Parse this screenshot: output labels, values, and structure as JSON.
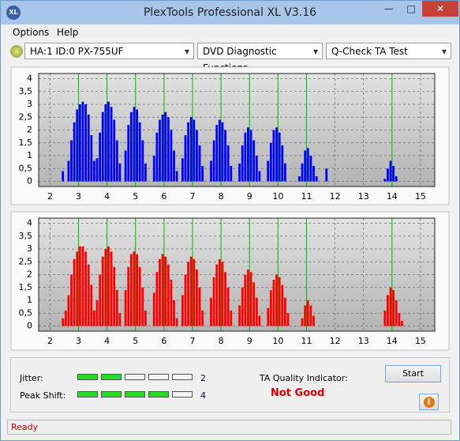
{
  "window": {
    "title": "PlexTools Professional XL V3.16"
  },
  "menu": [
    "Options",
    "Help"
  ],
  "toolbar": {
    "drive": "HA:1 ID:0  PX-755UF",
    "function": "DVD Diagnostic Functions",
    "test": "Q-Check TA Test"
  },
  "chart_data": [
    {
      "type": "bar",
      "color": "#0000ff",
      "marker_color": "#00c000",
      "grid": true,
      "xlim": [
        1.6,
        15.5
      ],
      "ylim": [
        -0.2,
        4.2
      ],
      "xticks": [
        2,
        3,
        4,
        5,
        6,
        7,
        8,
        9,
        10,
        11,
        12,
        13,
        14,
        15
      ],
      "yticks": [
        {
          "value": 0,
          "label": "0"
        },
        {
          "value": 0.5,
          "label": "0,5"
        },
        {
          "value": 1,
          "label": "1"
        },
        {
          "value": 1.5,
          "label": "1,5"
        },
        {
          "value": 2,
          "label": "2"
        },
        {
          "value": 2.5,
          "label": "2,5"
        },
        {
          "value": 3,
          "label": "3"
        },
        {
          "value": 3.5,
          "label": "3,5"
        },
        {
          "value": 4,
          "label": "4"
        }
      ],
      "markers": [
        3,
        4,
        5,
        6,
        7,
        8,
        9,
        10,
        11,
        14
      ],
      "x": [
        2.45,
        2.65,
        2.75,
        2.85,
        2.95,
        3.05,
        3.15,
        3.25,
        3.35,
        3.45,
        3.55,
        3.65,
        3.75,
        3.85,
        3.95,
        4.05,
        4.15,
        4.25,
        4.35,
        4.45,
        4.65,
        4.75,
        4.85,
        4.95,
        5.05,
        5.15,
        5.25,
        5.35,
        5.65,
        5.75,
        5.85,
        5.95,
        6.05,
        6.15,
        6.25,
        6.35,
        6.45,
        6.65,
        6.75,
        6.85,
        6.95,
        7.05,
        7.15,
        7.25,
        7.35,
        7.65,
        7.75,
        7.85,
        7.95,
        8.05,
        8.15,
        8.25,
        8.35,
        8.65,
        8.75,
        8.85,
        8.95,
        9.05,
        9.15,
        9.25,
        9.35,
        9.65,
        9.75,
        9.85,
        9.95,
        10.05,
        10.15,
        10.25,
        10.75,
        10.85,
        10.95,
        11.05,
        11.15,
        11.25,
        11.35,
        11.7,
        13.75,
        13.85,
        13.95,
        14.05,
        14.15
      ],
      "values": [
        0.4,
        0.8,
        1.6,
        2.3,
        2.8,
        3.0,
        3.1,
        3.0,
        2.6,
        1.8,
        0.8,
        0.9,
        1.9,
        2.7,
        3.0,
        3.1,
        2.9,
        2.4,
        1.6,
        0.7,
        1.2,
        2.2,
        2.7,
        2.9,
        2.8,
        2.3,
        1.6,
        0.7,
        1.0,
        1.9,
        2.4,
        2.6,
        2.7,
        2.5,
        2.0,
        1.2,
        0.4,
        0.9,
        1.8,
        2.3,
        2.5,
        2.4,
        2.0,
        1.4,
        0.6,
        0.8,
        1.6,
        2.2,
        2.4,
        2.3,
        2.0,
        1.4,
        0.6,
        0.7,
        1.4,
        1.9,
        2.1,
        2.0,
        1.6,
        1.0,
        0.4,
        0.8,
        1.5,
        2.0,
        2.1,
        1.9,
        1.4,
        0.7,
        0.2,
        0.7,
        1.2,
        1.3,
        1.0,
        0.6,
        0.2,
        0.5,
        0.1,
        0.5,
        0.8,
        0.6,
        0.2
      ]
    },
    {
      "type": "bar",
      "color": "#ff0000",
      "marker_color": "#00c000",
      "grid": true,
      "xlim": [
        1.6,
        15.5
      ],
      "ylim": [
        -0.2,
        4.2
      ],
      "xticks": [
        2,
        3,
        4,
        5,
        6,
        7,
        8,
        9,
        10,
        11,
        12,
        13,
        14,
        15
      ],
      "yticks": [
        {
          "value": 0,
          "label": "0"
        },
        {
          "value": 0.5,
          "label": "0,5"
        },
        {
          "value": 1,
          "label": "1"
        },
        {
          "value": 1.5,
          "label": "1,5"
        },
        {
          "value": 2,
          "label": "2"
        },
        {
          "value": 2.5,
          "label": "2,5"
        },
        {
          "value": 3,
          "label": "3"
        },
        {
          "value": 3.5,
          "label": "3,5"
        },
        {
          "value": 4,
          "label": "4"
        }
      ],
      "markers": [
        3,
        4,
        5,
        6,
        7,
        8,
        9,
        10,
        11,
        14
      ],
      "x": [
        2.45,
        2.55,
        2.65,
        2.75,
        2.85,
        2.95,
        3.05,
        3.15,
        3.25,
        3.35,
        3.45,
        3.55,
        3.65,
        3.75,
        3.85,
        3.95,
        4.05,
        4.15,
        4.25,
        4.35,
        4.45,
        4.65,
        4.75,
        4.85,
        4.95,
        5.05,
        5.15,
        5.25,
        5.35,
        5.65,
        5.75,
        5.85,
        5.95,
        6.05,
        6.15,
        6.25,
        6.35,
        6.45,
        6.65,
        6.75,
        6.85,
        6.95,
        7.05,
        7.15,
        7.25,
        7.35,
        7.65,
        7.75,
        7.85,
        7.95,
        8.05,
        8.15,
        8.25,
        8.35,
        8.65,
        8.75,
        8.85,
        8.95,
        9.05,
        9.15,
        9.25,
        9.35,
        9.65,
        9.75,
        9.85,
        9.95,
        10.05,
        10.15,
        10.25,
        10.35,
        10.85,
        10.95,
        11.05,
        11.15,
        11.25,
        13.75,
        13.85,
        13.95,
        14.05,
        14.15,
        14.25,
        14.35
      ],
      "values": [
        0.3,
        0.6,
        1.2,
        2.0,
        2.6,
        2.9,
        3.1,
        3.1,
        2.9,
        2.4,
        1.6,
        0.6,
        1.0,
        2.0,
        2.7,
        3.0,
        3.1,
        2.9,
        2.3,
        1.4,
        0.5,
        1.4,
        2.3,
        2.8,
        2.9,
        2.8,
        2.3,
        1.5,
        0.6,
        1.3,
        2.1,
        2.6,
        2.8,
        2.7,
        2.4,
        1.8,
        1.0,
        0.3,
        1.2,
        2.0,
        2.5,
        2.7,
        2.6,
        2.2,
        1.5,
        0.6,
        1.1,
        1.9,
        2.4,
        2.6,
        2.5,
        2.1,
        1.5,
        0.6,
        0.8,
        1.5,
        2.0,
        2.2,
        2.1,
        1.7,
        1.1,
        0.4,
        0.7,
        1.4,
        1.8,
        2.0,
        1.9,
        1.6,
        1.1,
        0.5,
        0.3,
        0.8,
        1.0,
        0.8,
        0.4,
        0.6,
        1.2,
        1.5,
        1.4,
        1.0,
        0.5,
        0.2
      ]
    }
  ],
  "results": {
    "jitter": {
      "label": "Jitter:",
      "value": 2,
      "segments": 5
    },
    "peak_shift": {
      "label": "Peak Shift:",
      "value": 4,
      "segments": 5
    },
    "ta_quality": {
      "label": "TA Quality Indicator:",
      "value": "Not Good"
    }
  },
  "buttons": {
    "start": "Start",
    "info": "i"
  },
  "status": "Ready"
}
